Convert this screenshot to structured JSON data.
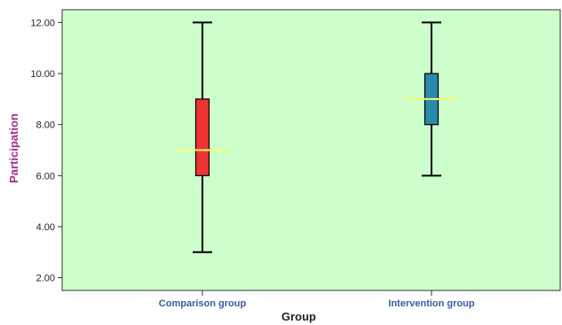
{
  "chart_data": {
    "type": "boxplot",
    "xlabel": "Group",
    "ylabel": "Participation",
    "ylim": [
      1.5,
      12.5
    ],
    "yticks": [
      "2.00",
      "4.00",
      "6.00",
      "8.00",
      "10.00",
      "12.00"
    ],
    "ytick_values": [
      2,
      4,
      6,
      8,
      10,
      12
    ],
    "grid": false,
    "colors": {
      "plot_background": "#ccffcc",
      "median_line": "#ffff66"
    },
    "categories": [
      "Comparison group",
      "Intervention group"
    ],
    "boxes": [
      {
        "category": "Comparison group",
        "min": 3,
        "q1": 6,
        "median": 7,
        "q3": 9,
        "max": 12,
        "color": "#ee3333"
      },
      {
        "category": "Intervention group",
        "min": 6,
        "q1": 8,
        "median": 9,
        "q3": 10,
        "max": 12,
        "color": "#2a8aab"
      }
    ]
  }
}
